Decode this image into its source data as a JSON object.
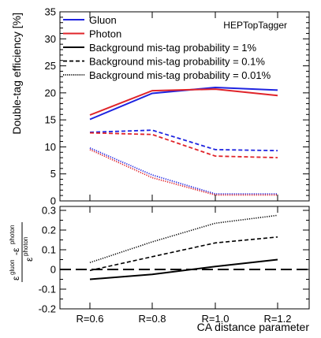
{
  "chart_data": [
    {
      "type": "line",
      "panel": "top",
      "categories": [
        "R=0.6",
        "R=0.8",
        "R=1.0",
        "R=1.2"
      ],
      "ylabel": "Double-tag efficiency [%]",
      "ylim": [
        0,
        35
      ],
      "yticks": [
        0,
        5,
        10,
        15,
        20,
        25,
        30,
        35
      ],
      "annotation": "HEPTopTagger",
      "legend_position": "top-left",
      "colors": {
        "Gluon": "#1f24e0",
        "Photon": "#e0242a"
      },
      "legend": [
        {
          "label": "Gluon",
          "color": "#1f24e0",
          "style": "solid"
        },
        {
          "label": "Photon",
          "color": "#e0242a",
          "style": "solid"
        },
        {
          "label": "Background mis-tag probability = 1%",
          "color": "#000000",
          "style": "solid"
        },
        {
          "label": "Background mis-tag probability = 0.1%",
          "color": "#000000",
          "style": "dashed"
        },
        {
          "label": "Background mis-tag probability = 0.01%",
          "color": "#000000",
          "style": "dotted"
        }
      ],
      "series": [
        {
          "group": "Gluon",
          "mistag": "1%",
          "style": "solid",
          "values": [
            15.1,
            19.9,
            21.0,
            20.5
          ]
        },
        {
          "group": "Photon",
          "mistag": "1%",
          "style": "solid",
          "values": [
            15.9,
            20.4,
            20.7,
            19.5
          ]
        },
        {
          "group": "Gluon",
          "mistag": "0.1%",
          "style": "dashed",
          "values": [
            12.7,
            13.1,
            9.5,
            9.3
          ]
        },
        {
          "group": "Photon",
          "mistag": "0.1%",
          "style": "dashed",
          "values": [
            12.6,
            12.3,
            8.3,
            8.0
          ]
        },
        {
          "group": "Gluon",
          "mistag": "0.01%",
          "style": "dotted",
          "values": [
            9.8,
            4.8,
            1.3,
            1.3
          ]
        },
        {
          "group": "Photon",
          "mistag": "0.01%",
          "style": "dotted",
          "values": [
            9.5,
            4.3,
            1.1,
            1.1
          ]
        }
      ]
    },
    {
      "type": "line",
      "panel": "bottom",
      "categories": [
        "R=0.6",
        "R=0.8",
        "R=1.0",
        "R=1.2"
      ],
      "xlabel": "CA distance parameter",
      "ylabel": "(ε^gluon − ε^photon) / ε^photon",
      "ylim": [
        -0.2,
        0.32
      ],
      "yticks": [
        -0.2,
        -0.1,
        0,
        0.1,
        0.2,
        0.3
      ],
      "ytick_labels": [
        "-0.2",
        "-0.1",
        "0",
        "0.1",
        "0.2",
        "0.3"
      ],
      "reference_line": {
        "y": 0,
        "style": "long-dash"
      },
      "series": [
        {
          "mistag": "1%",
          "style": "solid",
          "values": [
            -0.05,
            -0.025,
            0.015,
            0.05
          ]
        },
        {
          "mistag": "0.1%",
          "style": "dashed",
          "values": [
            -0.005,
            0.065,
            0.135,
            0.165
          ]
        },
        {
          "mistag": "0.01%",
          "style": "dotted",
          "values": [
            0.035,
            0.14,
            0.235,
            0.275
          ]
        }
      ]
    }
  ]
}
